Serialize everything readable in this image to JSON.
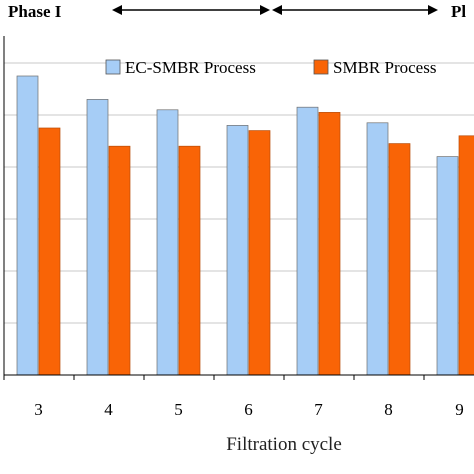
{
  "phases": [
    {
      "label": "Phase I"
    },
    {
      "label": "Pl"
    }
  ],
  "chart_data": {
    "type": "bar",
    "categories": [
      "3",
      "4",
      "5",
      "6",
      "7",
      "8",
      "9"
    ],
    "series": [
      {
        "name": "EC-SMBR Process",
        "color": "#a6cdf6",
        "values": [
          5.75,
          5.3,
          5.1,
          4.8,
          5.15,
          4.85,
          4.2
        ]
      },
      {
        "name": "SMBR Process",
        "color": "#f96406",
        "values": [
          4.75,
          4.4,
          4.4,
          4.7,
          5.05,
          4.45,
          4.6
        ]
      }
    ],
    "xlabel": "Filtration cycle",
    "ylim": [
      0,
      6.5
    ],
    "grid": true,
    "legend_position": "top-right"
  }
}
